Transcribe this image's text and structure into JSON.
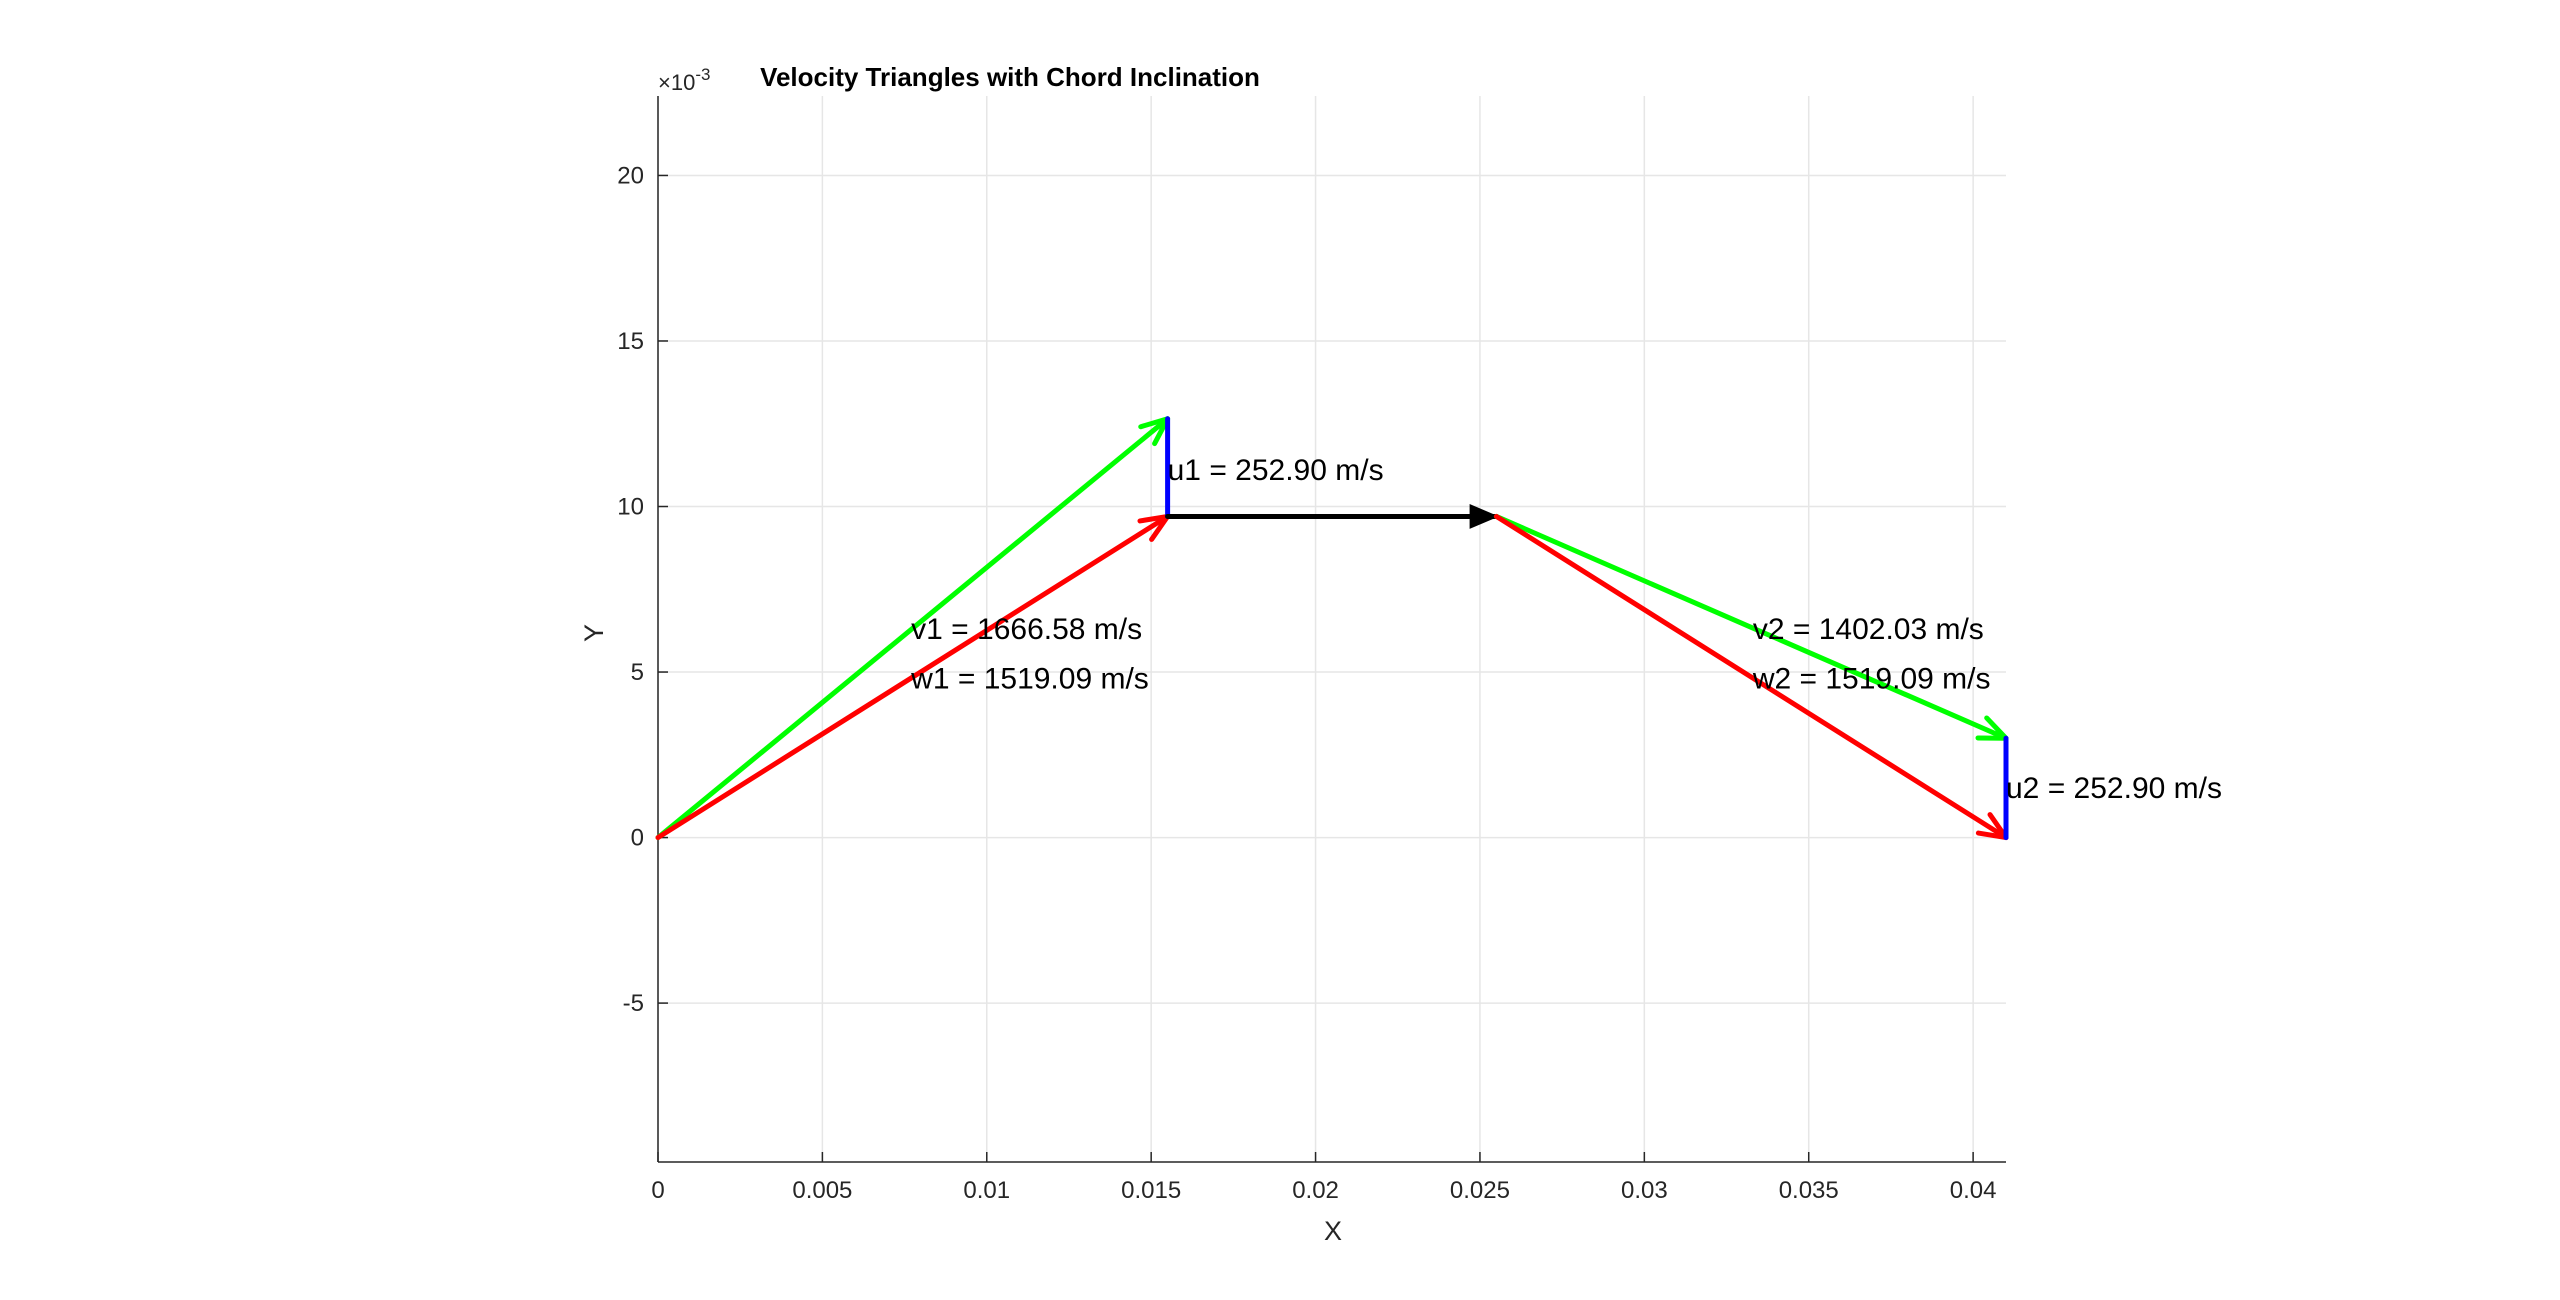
{
  "chart_data": {
    "type": "line",
    "title": "Velocity Triangles with Chord Inclination",
    "xlabel": "X",
    "ylabel": "Y",
    "xlim": [
      0,
      0.041
    ],
    "ylim": [
      -0.0098,
      0.0224
    ],
    "y_exponent_label": "×10",
    "y_exponent_power": "-3",
    "grid": true,
    "x_ticks": [
      {
        "value": 0,
        "label": "0"
      },
      {
        "value": 0.005,
        "label": "0.005"
      },
      {
        "value": 0.01,
        "label": "0.01"
      },
      {
        "value": 0.015,
        "label": "0.015"
      },
      {
        "value": 0.02,
        "label": "0.02"
      },
      {
        "value": 0.025,
        "label": "0.025"
      },
      {
        "value": 0.03,
        "label": "0.03"
      },
      {
        "value": 0.035,
        "label": "0.035"
      },
      {
        "value": 0.04,
        "label": "0.04"
      }
    ],
    "y_ticks": [
      {
        "value": -0.005,
        "label": "-5"
      },
      {
        "value": 0,
        "label": "0"
      },
      {
        "value": 0.005,
        "label": "5"
      },
      {
        "value": 0.01,
        "label": "10"
      },
      {
        "value": 0.015,
        "label": "15"
      },
      {
        "value": 0.02,
        "label": "20"
      }
    ],
    "vectors": [
      {
        "id": "v1",
        "x0": 0,
        "y0": 0,
        "x1": 0.0155,
        "y1": 0.01265,
        "color": "#00ff00",
        "head": true
      },
      {
        "id": "w1",
        "x0": 0,
        "y0": 0,
        "x1": 0.0155,
        "y1": 0.0097,
        "color": "#ff0000",
        "head": true
      },
      {
        "id": "u1",
        "x0": 0.0155,
        "y0": 0.0097,
        "x1": 0.0155,
        "y1": 0.01265,
        "color": "#0000ff",
        "head": false
      },
      {
        "id": "chord",
        "x0": 0.0155,
        "y0": 0.0097,
        "x1": 0.0255,
        "y1": 0.0097,
        "color": "#000000",
        "head": true
      },
      {
        "id": "v2",
        "x0": 0.0255,
        "y0": 0.0097,
        "x1": 0.041,
        "y1": 0.003,
        "color": "#00ff00",
        "head": true
      },
      {
        "id": "w2",
        "x0": 0.0255,
        "y0": 0.0097,
        "x1": 0.041,
        "y1": 0.0,
        "color": "#ff0000",
        "head": true
      },
      {
        "id": "u2",
        "x0": 0.041,
        "y0": 0.0,
        "x1": 0.041,
        "y1": 0.003,
        "color": "#0000ff",
        "head": false
      }
    ],
    "annotations": [
      {
        "text": "u1 = 252.90 m/s",
        "x": 0.0155,
        "y": 0.0111
      },
      {
        "text": "v1 = 1666.58 m/s",
        "x": 0.0077,
        "y": 0.0063
      },
      {
        "text": "w1 = 1519.09 m/s",
        "x": 0.0077,
        "y": 0.0048
      },
      {
        "text": "v2 = 1402.03 m/s",
        "x": 0.0333,
        "y": 0.0063
      },
      {
        "text": "w2 = 1519.09 m/s",
        "x": 0.0333,
        "y": 0.0048
      },
      {
        "text": "u2 = 252.90 m/s",
        "x": 0.041,
        "y": 0.0015
      }
    ]
  }
}
